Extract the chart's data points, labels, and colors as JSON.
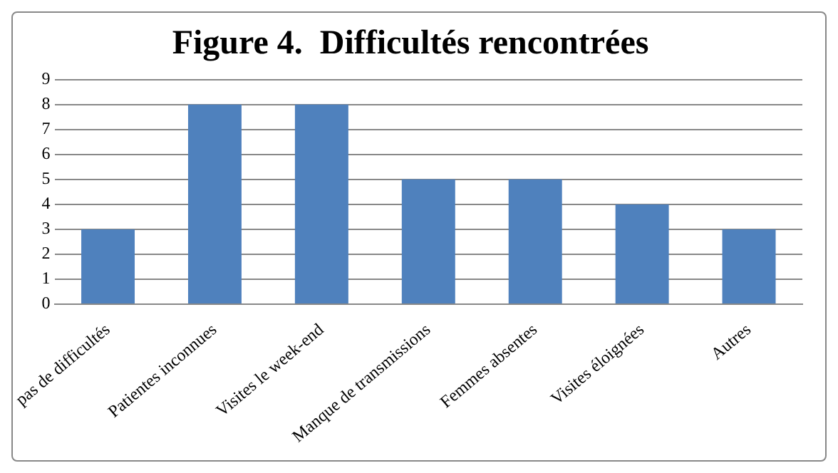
{
  "chart_data": {
    "type": "bar",
    "title": "Figure 4.  Difficultés rencontrées",
    "categories": [
      "pas de difficultés",
      "Patientes inconnues",
      "Visites le week-end",
      "Manque de transmissions",
      "Femmes absentes",
      "Visites éloignées",
      "Autres"
    ],
    "values": [
      3,
      8,
      8,
      5,
      5,
      4,
      3
    ],
    "color": "#4f81bd",
    "ylim": [
      0,
      9
    ],
    "yticks": [
      0,
      1,
      2,
      3,
      4,
      5,
      6,
      7,
      8,
      9
    ],
    "grid": "y"
  }
}
